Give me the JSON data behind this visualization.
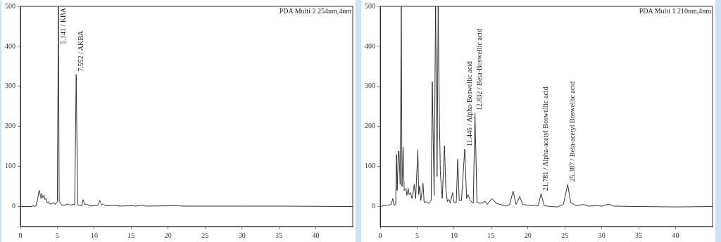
{
  "chart_data": [
    {
      "type": "line",
      "xlim": [
        0,
        45
      ],
      "ylim": [
        -50,
        500
      ],
      "xticks": [
        0,
        5,
        10,
        15,
        20,
        25,
        30,
        35,
        40
      ],
      "yticks": [
        0,
        100,
        200,
        300,
        400,
        500
      ],
      "x": [
        0,
        1.6,
        1.7,
        1.9,
        2.1,
        2.3,
        2.5,
        2.6,
        2.7,
        2.8,
        2.9,
        3.0,
        3.2,
        3.3,
        3.5,
        3.6,
        3.8,
        4.0,
        4.3,
        4.5,
        4.7,
        4.9,
        5.0,
        5.141,
        5.25,
        5.4,
        5.6,
        6.0,
        6.5,
        6.7,
        7.2,
        7.35,
        7.552,
        7.75,
        8.0,
        8.3,
        8.5,
        8.7,
        9.0,
        9.5,
        10.0,
        10.5,
        10.75,
        11.0,
        11.2,
        11.5,
        12.0,
        12.8,
        13.5,
        15.2,
        15.6,
        16.4,
        17.0,
        21.3,
        22.0,
        30.5,
        35.0,
        45.0
      ],
      "series": [
        {
          "color": "#333333",
          "values": [
            0,
            0,
            3,
            0,
            2,
            15,
            38,
            40,
            25,
            20,
            33,
            22,
            28,
            18,
            20,
            10,
            12,
            6,
            8,
            10,
            5,
            10,
            12,
            500,
            12,
            10,
            3,
            3,
            7,
            3,
            6,
            3,
            330,
            5,
            3,
            2,
            17,
            5,
            5,
            1,
            2,
            3,
            15,
            4,
            6,
            2,
            2,
            3,
            1,
            2,
            1,
            3,
            1,
            2,
            1,
            1,
            1,
            0
          ]
        }
      ],
      "annotations": [
        "PDA Multi 2 254nm,4nm",
        {
          "text": "5.141 / KBA",
          "x": 5.141,
          "y": 500
        },
        {
          "text": "7.552 / AKBA",
          "x": 7.552,
          "y": 330
        }
      ]
    },
    {
      "type": "line",
      "xlim": [
        0,
        45
      ],
      "ylim": [
        -50,
        500
      ],
      "xticks": [
        0,
        5,
        10,
        15,
        20,
        25,
        30,
        35,
        40
      ],
      "yticks": [
        0,
        100,
        200,
        300,
        400,
        500
      ],
      "x": [
        0,
        1.5,
        1.7,
        1.85,
        2.1,
        2.2,
        2.3,
        2.45,
        2.55,
        2.7,
        2.85,
        2.95,
        3.1,
        3.25,
        3.5,
        3.6,
        3.8,
        3.9,
        4.1,
        4.3,
        4.5,
        4.6,
        4.8,
        5.1,
        5.2,
        5.35,
        5.5,
        5.8,
        5.95,
        6.2,
        6.6,
        6.9,
        7.05,
        7.3,
        7.5,
        7.7,
        7.85,
        8.0,
        8.15,
        8.4,
        8.7,
        8.9,
        9.1,
        9.3,
        9.5,
        9.8,
        10.0,
        10.3,
        10.5,
        10.7,
        11.0,
        11.445,
        11.7,
        11.9,
        12.2,
        12.6,
        12.832,
        13.1,
        13.6,
        14.2,
        14.5,
        15.1,
        15.4,
        15.7,
        16.3,
        17.0,
        17.5,
        18.0,
        18.4,
        18.9,
        19.3,
        20.5,
        21.0,
        21.4,
        21.781,
        22.2,
        23.0,
        24.0,
        24.8,
        25.387,
        25.8,
        26.5,
        27.6,
        28.2,
        29.5,
        30.0,
        31.0,
        31.6,
        35.0,
        40.0,
        45.0
      ],
      "series": [
        {
          "color": "#333333",
          "values": [
            0,
            5,
            20,
            3,
            5,
            130,
            40,
            138,
            138,
            55,
            500,
            50,
            148,
            40,
            45,
            28,
            45,
            30,
            35,
            20,
            40,
            55,
            20,
            142,
            30,
            52,
            15,
            58,
            10,
            12,
            8,
            15,
            312,
            28,
            500,
            75,
            500,
            240,
            80,
            20,
            152,
            40,
            12,
            18,
            8,
            35,
            10,
            10,
            118,
            15,
            15,
            143,
            20,
            30,
            15,
            8,
            233,
            10,
            8,
            13,
            5,
            20,
            15,
            8,
            5,
            1,
            4,
            38,
            5,
            25,
            5,
            2,
            3,
            2,
            32,
            2,
            0,
            -1,
            5,
            55,
            10,
            2,
            5,
            1,
            2,
            1,
            6,
            1,
            0,
            -1,
            0
          ]
        }
      ],
      "annotations": [
        "PDA Multi 1 210nm,4nm",
        {
          "text": "11.445 / Alpha-Boswellic acid",
          "x": 11.445,
          "y": 143
        },
        {
          "text": "12.832 / Beta-Boswellic acid",
          "x": 12.832,
          "y": 233
        },
        {
          "text": "21.781 / Alpha-acetyl Boswellic acid",
          "x": 21.781,
          "y": 32
        },
        {
          "text": "25.387 / Beta-acetyl Boswellic acid",
          "x": 25.387,
          "y": 55
        }
      ]
    }
  ]
}
